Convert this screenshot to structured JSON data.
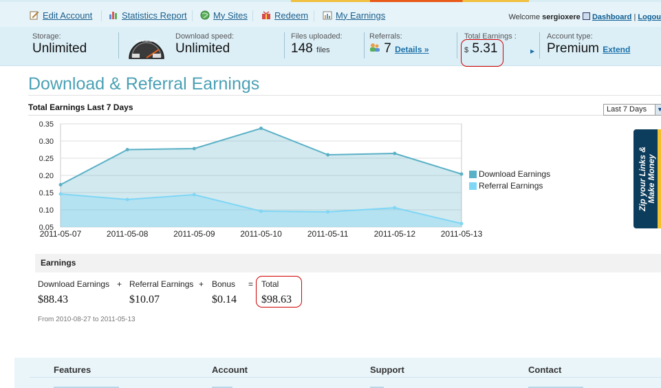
{
  "colors": {
    "download_series": "#5ab0c6",
    "referral_series": "#7fd6f5",
    "highlight": "#d10000",
    "title": "#4aa0b5",
    "link": "#1a5d8a"
  },
  "nav": {
    "items": [
      {
        "label": "Edit Account",
        "icon": "edit-icon"
      },
      {
        "label": "Statistics Report",
        "icon": "bar-chart-icon"
      },
      {
        "label": "My Sites",
        "icon": "globe-icon"
      },
      {
        "label": "Redeem",
        "icon": "gift-icon"
      },
      {
        "label": "My Earnings",
        "icon": "earnings-icon"
      }
    ],
    "welcome_prefix": "Welcome",
    "username": "sergioxere",
    "dashboard_label": "Dashboard",
    "logout_label": "Logou"
  },
  "stats": {
    "storage_label": "Storage:",
    "storage_value": "Unlimited",
    "speedometer_icon": "speedometer-icon",
    "speed_label": "Download speed:",
    "speed_value": "Unlimited",
    "files_label": "Files uploaded:",
    "files_value": "148",
    "files_unit": "files",
    "referrals_label": "Referrals:",
    "referrals_value": "7",
    "referrals_details": "Details »",
    "total_label": "Total Earnings :",
    "total_currency": "$",
    "total_value": "5.31",
    "account_label": "Account type:",
    "account_value": "Premium",
    "account_extend": "Extend"
  },
  "page": {
    "title": "Download & Referral Earnings",
    "chart_title": "Total Earnings Last 7 Days",
    "range_select": "Last 7 Days"
  },
  "promo": {
    "line1": "Zip your Links &",
    "line2": "Make Money"
  },
  "chart_data": {
    "type": "area",
    "x": [
      "2011-05-07",
      "2011-05-08",
      "2011-05-09",
      "2011-05-10",
      "2011-05-11",
      "2011-05-12",
      "2011-05-13"
    ],
    "series": [
      {
        "name": "Download Earnings",
        "values": [
          0.173,
          0.275,
          0.278,
          0.337,
          0.26,
          0.264,
          0.204
        ]
      },
      {
        "name": "Referral Earnings",
        "values": [
          0.146,
          0.13,
          0.144,
          0.096,
          0.094,
          0.106,
          0.06
        ]
      }
    ],
    "yticks": [
      "0.35",
      "0.30",
      "0.25",
      "0.20",
      "0.15",
      "0.10",
      "0.05"
    ],
    "ylim": [
      0.05,
      0.35
    ],
    "grid": true,
    "legend": "right"
  },
  "earnings": {
    "heading": "Earnings",
    "download_label": "Download Earnings",
    "download_value": "$88.43",
    "plus1": "+",
    "referral_label": "Referral Earnings",
    "referral_value": "$10.07",
    "plus2": "+",
    "bonus_label": "Bonus",
    "bonus_value": "$0.14",
    "equals": "=",
    "total_label": "Total",
    "total_value": "$98.63",
    "date_range": "From 2010-08-27 to 2011-05-13"
  },
  "footer": {
    "columns": [
      "Features",
      "Account",
      "Support",
      "Contact"
    ]
  }
}
